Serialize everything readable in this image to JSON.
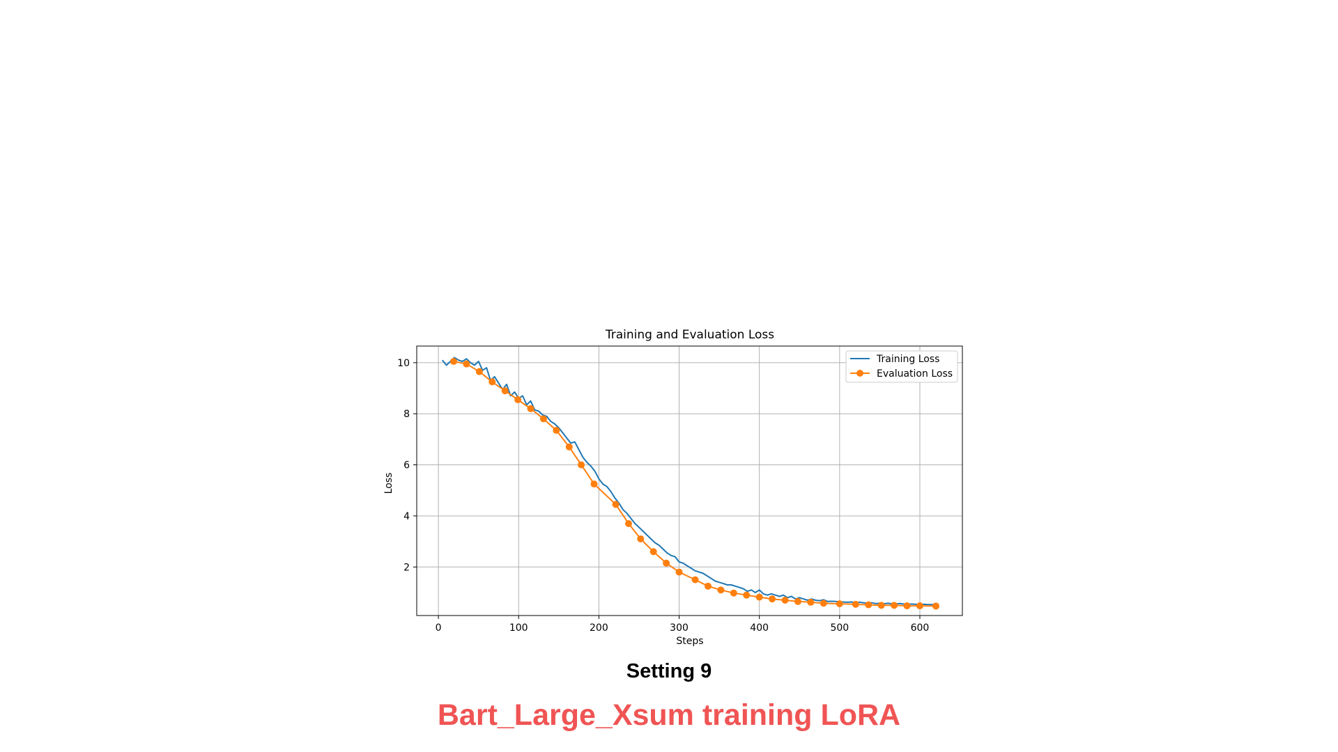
{
  "caption": "Setting 9",
  "slide_title": "Bart_Large_Xsum training LoRA",
  "slide_title_color": "#f05454",
  "chart_data": {
    "type": "line",
    "title": "Training and Evaluation Loss",
    "xlabel": "Steps",
    "ylabel": "Loss",
    "xlim": [
      -27,
      653
    ],
    "ylim": [
      0.1,
      10.65
    ],
    "xticks": [
      0,
      100,
      200,
      300,
      400,
      500,
      600
    ],
    "yticks": [
      2,
      4,
      6,
      8,
      10
    ],
    "grid": true,
    "legend_position": "top-right",
    "series": [
      {
        "name": "Training Loss",
        "color": "#1f77b4",
        "marker": "none",
        "x": [
          5,
          10,
          15,
          20,
          25,
          30,
          35,
          40,
          45,
          50,
          55,
          60,
          65,
          70,
          75,
          80,
          85,
          90,
          95,
          100,
          105,
          110,
          115,
          120,
          125,
          130,
          135,
          140,
          145,
          150,
          155,
          160,
          165,
          170,
          175,
          180,
          185,
          190,
          195,
          200,
          205,
          210,
          215,
          220,
          225,
          230,
          235,
          240,
          245,
          250,
          255,
          260,
          265,
          270,
          275,
          280,
          285,
          290,
          295,
          300,
          305,
          310,
          315,
          320,
          325,
          330,
          335,
          340,
          345,
          350,
          355,
          360,
          365,
          370,
          375,
          380,
          385,
          390,
          395,
          400,
          405,
          410,
          415,
          420,
          425,
          430,
          435,
          440,
          445,
          450,
          455,
          460,
          465,
          470,
          475,
          480,
          485,
          490,
          495,
          500,
          505,
          510,
          515,
          520,
          525,
          530,
          535,
          540,
          545,
          550,
          555,
          560,
          565,
          570,
          575,
          580,
          585,
          590,
          595,
          600,
          605,
          610,
          615,
          620
        ],
        "y": [
          10.1,
          9.9,
          10.05,
          10.2,
          10.1,
          10.05,
          10.15,
          10.0,
          9.9,
          10.05,
          9.7,
          9.8,
          9.3,
          9.45,
          9.2,
          8.95,
          9.15,
          8.7,
          8.85,
          8.6,
          8.7,
          8.35,
          8.5,
          8.15,
          8.1,
          7.95,
          7.9,
          7.7,
          7.6,
          7.45,
          7.25,
          7.05,
          6.85,
          6.9,
          6.6,
          6.3,
          6.1,
          5.95,
          5.75,
          5.45,
          5.25,
          5.15,
          4.95,
          4.7,
          4.5,
          4.25,
          4.1,
          3.9,
          3.7,
          3.55,
          3.4,
          3.25,
          3.1,
          2.95,
          2.85,
          2.7,
          2.55,
          2.45,
          2.4,
          2.2,
          2.15,
          2.05,
          1.95,
          1.85,
          1.8,
          1.75,
          1.65,
          1.55,
          1.45,
          1.4,
          1.35,
          1.3,
          1.3,
          1.25,
          1.2,
          1.15,
          1.05,
          1.1,
          1.0,
          1.1,
          0.95,
          0.9,
          0.95,
          0.9,
          0.85,
          0.9,
          0.8,
          0.85,
          0.75,
          0.8,
          0.75,
          0.7,
          0.75,
          0.7,
          0.68,
          0.72,
          0.65,
          0.66,
          0.65,
          0.64,
          0.63,
          0.62,
          0.63,
          0.6,
          0.62,
          0.6,
          0.58,
          0.6,
          0.57,
          0.58,
          0.56,
          0.58,
          0.56,
          0.55,
          0.57,
          0.55,
          0.54,
          0.55,
          0.54,
          0.53,
          0.54,
          0.53,
          0.53,
          0.52
        ]
      },
      {
        "name": "Evaluation Loss",
        "color": "#ff7f0e",
        "marker": "circle",
        "x": [
          19,
          35,
          51,
          67,
          83,
          99,
          115,
          131,
          147,
          163,
          178,
          194,
          221,
          237,
          252,
          268,
          284,
          300,
          320,
          336,
          352,
          368,
          384,
          400,
          416,
          432,
          448,
          464,
          480,
          500,
          520,
          536,
          552,
          568,
          584,
          600,
          620
        ],
        "y": [
          10.05,
          9.95,
          9.65,
          9.25,
          8.9,
          8.55,
          8.2,
          7.8,
          7.35,
          6.7,
          6.0,
          5.25,
          4.45,
          3.7,
          3.1,
          2.6,
          2.15,
          1.8,
          1.5,
          1.25,
          1.1,
          0.98,
          0.9,
          0.82,
          0.75,
          0.7,
          0.65,
          0.62,
          0.58,
          0.56,
          0.54,
          0.52,
          0.5,
          0.5,
          0.48,
          0.48,
          0.47
        ]
      }
    ]
  }
}
